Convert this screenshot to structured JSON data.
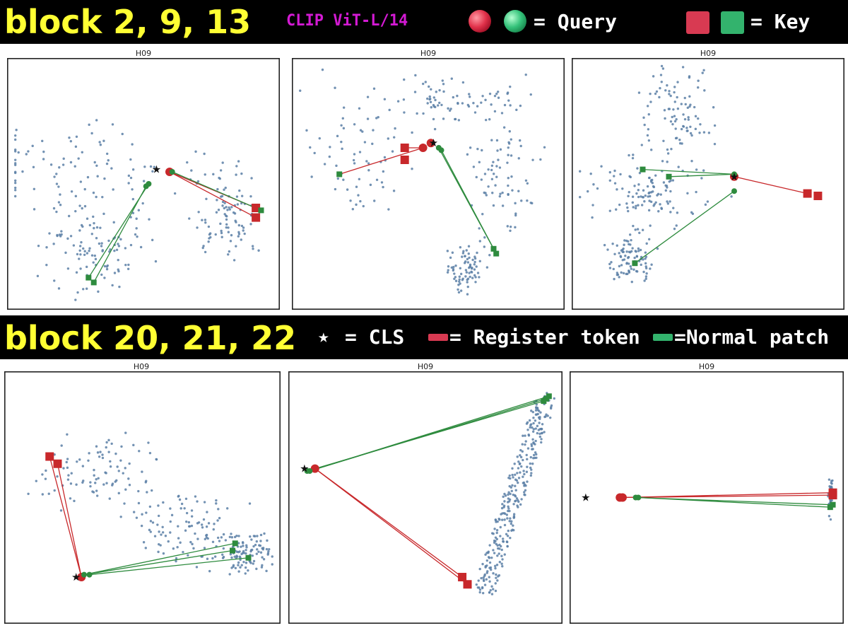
{
  "header": {
    "title_top": "block 2, 9, 13",
    "model": "CLIP ViT-L/14",
    "query_label": "= Query",
    "key_label": "= Key",
    "title_mid": "block 20, 21, 22",
    "cls_label": "= CLS",
    "register_label": "= Register token",
    "normal_label": "=Normal patch",
    "star_glyph": "★"
  },
  "colors": {
    "register": "#c8282b",
    "normal": "#2e8b3e",
    "background_points": "#5b7fa6",
    "cls": "#111111",
    "title_accent": "#ffff33",
    "model_accent": "#d31ad3"
  },
  "chart_data": [
    {
      "type": "scatter",
      "title": "H09",
      "xlim": [
        0,
        1
      ],
      "ylim": [
        0,
        1
      ],
      "background_count": 300,
      "cluster": [
        [
          0.28,
          0.55,
          0.34,
          0.14
        ],
        [
          0.82,
          0.38,
          0.1,
          0.15
        ],
        [
          0.32,
          0.22,
          0.15,
          0.14
        ]
      ],
      "cls": [
        0.55,
        0.56
      ],
      "queries": [
        {
          "type": "register",
          "x": 0.6,
          "y": 0.55
        },
        {
          "type": "normal",
          "x": 0.61,
          "y": 0.55
        },
        {
          "type": "normal",
          "x": 0.52,
          "y": 0.5
        },
        {
          "type": "normal",
          "x": 0.51,
          "y": 0.49
        }
      ],
      "keys": [
        {
          "type": "register",
          "x": 0.93,
          "y": 0.4
        },
        {
          "type": "register",
          "x": 0.93,
          "y": 0.36
        },
        {
          "type": "normal",
          "x": 0.95,
          "y": 0.39
        },
        {
          "type": "normal",
          "x": 0.29,
          "y": 0.11
        },
        {
          "type": "normal",
          "x": 0.31,
          "y": 0.09
        }
      ],
      "links": [
        [
          0,
          0
        ],
        [
          0,
          1
        ],
        [
          1,
          2
        ],
        [
          2,
          3
        ],
        [
          3,
          4
        ]
      ]
    },
    {
      "type": "scatter",
      "title": "H09",
      "xlim": [
        0,
        1
      ],
      "ylim": [
        0,
        1
      ],
      "background_count": 300,
      "cluster": [
        [
          0.25,
          0.62,
          0.18,
          0.22
        ],
        [
          0.78,
          0.58,
          0.1,
          0.22
        ],
        [
          0.6,
          0.85,
          0.2,
          0.07
        ],
        [
          0.64,
          0.15,
          0.06,
          0.07
        ]
      ],
      "cls": [
        0.52,
        0.67
      ],
      "queries": [
        {
          "type": "register",
          "x": 0.51,
          "y": 0.67
        },
        {
          "type": "register",
          "x": 0.48,
          "y": 0.65
        },
        {
          "type": "normal",
          "x": 0.54,
          "y": 0.65
        },
        {
          "type": "normal",
          "x": 0.55,
          "y": 0.64
        }
      ],
      "keys": [
        {
          "type": "register",
          "x": 0.41,
          "y": 0.65
        },
        {
          "type": "register",
          "x": 0.41,
          "y": 0.6
        },
        {
          "type": "normal",
          "x": 0.16,
          "y": 0.54
        },
        {
          "type": "normal",
          "x": 0.75,
          "y": 0.23
        },
        {
          "type": "normal",
          "x": 0.76,
          "y": 0.21
        }
      ],
      "links": [
        [
          1,
          0
        ],
        [
          1,
          2
        ],
        [
          2,
          3
        ],
        [
          3,
          4
        ]
      ]
    },
    {
      "type": "scatter",
      "title": "H09",
      "xlim": [
        0,
        1
      ],
      "ylim": [
        0,
        1
      ],
      "background_count": 300,
      "cluster": [
        [
          0.38,
          0.8,
          0.1,
          0.14
        ],
        [
          0.28,
          0.47,
          0.18,
          0.1
        ],
        [
          0.2,
          0.2,
          0.06,
          0.08
        ]
      ],
      "cls": [
        0.6,
        0.53
      ],
      "queries": [
        {
          "type": "register",
          "x": 0.6,
          "y": 0.53
        },
        {
          "type": "normal",
          "x": 0.6,
          "y": 0.54
        },
        {
          "type": "normal",
          "x": 0.6,
          "y": 0.47
        }
      ],
      "keys": [
        {
          "type": "register",
          "x": 0.88,
          "y": 0.46
        },
        {
          "type": "register",
          "x": 0.92,
          "y": 0.45
        },
        {
          "type": "normal",
          "x": 0.25,
          "y": 0.56
        },
        {
          "type": "normal",
          "x": 0.35,
          "y": 0.53
        },
        {
          "type": "normal",
          "x": 0.22,
          "y": 0.17
        }
      ],
      "links": [
        [
          0,
          0
        ],
        [
          1,
          2
        ],
        [
          1,
          3
        ],
        [
          2,
          4
        ]
      ]
    },
    {
      "type": "scatter",
      "title": "H09",
      "xlim": [
        0,
        1
      ],
      "ylim": [
        0,
        1
      ],
      "background_count": 300,
      "cluster": [
        [
          0.35,
          0.6,
          0.18,
          0.12
        ],
        [
          0.65,
          0.37,
          0.18,
          0.1
        ],
        [
          0.88,
          0.27,
          0.08,
          0.06
        ]
      ],
      "cls": [
        0.25,
        0.17
      ],
      "queries": [
        {
          "type": "register",
          "x": 0.27,
          "y": 0.17
        },
        {
          "type": "normal",
          "x": 0.28,
          "y": 0.18
        },
        {
          "type": "normal",
          "x": 0.3,
          "y": 0.18
        }
      ],
      "keys": [
        {
          "type": "register",
          "x": 0.15,
          "y": 0.67
        },
        {
          "type": "register",
          "x": 0.18,
          "y": 0.64
        },
        {
          "type": "normal",
          "x": 0.85,
          "y": 0.31
        },
        {
          "type": "normal",
          "x": 0.84,
          "y": 0.28
        },
        {
          "type": "normal",
          "x": 0.9,
          "y": 0.25
        }
      ],
      "links": [
        [
          0,
          0
        ],
        [
          0,
          1
        ],
        [
          1,
          2
        ],
        [
          1,
          3
        ],
        [
          2,
          4
        ]
      ]
    },
    {
      "type": "scatter",
      "title": "H09",
      "xlim": [
        0,
        1
      ],
      "ylim": [
        0,
        1
      ],
      "background_count": 300,
      "ribbon": {
        "start": [
          0.72,
          0.1
        ],
        "end": [
          0.96,
          0.93
        ],
        "jitter": 0.04
      },
      "cls": [
        0.04,
        0.62
      ],
      "queries": [
        {
          "type": "register",
          "x": 0.08,
          "y": 0.62
        },
        {
          "type": "normal",
          "x": 0.06,
          "y": 0.61
        },
        {
          "type": "normal",
          "x": 0.05,
          "y": 0.61
        }
      ],
      "keys": [
        {
          "type": "register",
          "x": 0.64,
          "y": 0.17
        },
        {
          "type": "register",
          "x": 0.66,
          "y": 0.14
        },
        {
          "type": "normal",
          "x": 0.97,
          "y": 0.92
        },
        {
          "type": "normal",
          "x": 0.96,
          "y": 0.91
        },
        {
          "type": "normal",
          "x": 0.95,
          "y": 0.9
        }
      ],
      "links": [
        [
          0,
          0
        ],
        [
          0,
          1
        ],
        [
          1,
          2
        ],
        [
          1,
          3
        ],
        [
          2,
          4
        ]
      ]
    },
    {
      "type": "scatter",
      "title": "H09",
      "xlim": [
        0,
        1
      ],
      "ylim": [
        0,
        1
      ],
      "background_count": 50,
      "cluster": [
        [
          0.97,
          0.5,
          0.006,
          0.06
        ]
      ],
      "cls": [
        0.04,
        0.5
      ],
      "queries": [
        {
          "type": "register",
          "x": 0.17,
          "y": 0.5
        },
        {
          "type": "register",
          "x": 0.18,
          "y": 0.5
        },
        {
          "type": "normal",
          "x": 0.23,
          "y": 0.5
        },
        {
          "type": "normal",
          "x": 0.24,
          "y": 0.5
        }
      ],
      "keys": [
        {
          "type": "register",
          "x": 0.98,
          "y": 0.52
        },
        {
          "type": "register",
          "x": 0.98,
          "y": 0.51
        },
        {
          "type": "normal",
          "x": 0.98,
          "y": 0.47
        },
        {
          "type": "normal",
          "x": 0.97,
          "y": 0.46
        }
      ],
      "links": [
        [
          0,
          0
        ],
        [
          1,
          1
        ],
        [
          2,
          2
        ],
        [
          3,
          3
        ]
      ]
    }
  ]
}
